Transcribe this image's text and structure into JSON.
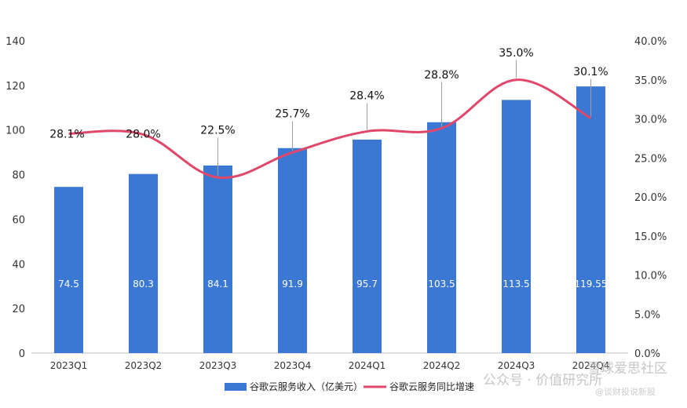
{
  "chart_data": {
    "type": "bar+line",
    "categories": [
      "2023Q1",
      "2023Q2",
      "2023Q3",
      "2023Q4",
      "2024Q1",
      "2024Q2",
      "2024Q3",
      "2024Q4"
    ],
    "bar_series": {
      "name": "谷歌云服务收入（亿美元）",
      "values": [
        74.5,
        80.3,
        84.1,
        91.9,
        95.7,
        103.5,
        113.5,
        119.55
      ],
      "labels": [
        "74.5",
        "80.3",
        "84.1",
        "91.9",
        "95.7",
        "103.5",
        "113.5",
        "119.55"
      ],
      "color": "#3a78d4"
    },
    "line_series": {
      "name": "谷歌云服务同比增速",
      "values": [
        28.1,
        28.0,
        22.5,
        25.7,
        28.4,
        28.8,
        35.0,
        30.1
      ],
      "labels": [
        "28.1%",
        "28.0%",
        "22.5%",
        "25.7%",
        "28.4%",
        "28.8%",
        "35.0%",
        "30.1%"
      ],
      "color": "#e0476a"
    },
    "y_left": {
      "min": 0,
      "max": 140,
      "ticks": [
        "0",
        "20",
        "40",
        "60",
        "80",
        "100",
        "120",
        "140"
      ]
    },
    "y_right": {
      "min": 0,
      "max": 40,
      "ticks": [
        "0.0%",
        "5.0%",
        "10.0%",
        "15.0%",
        "20.0%",
        "25.0%",
        "30.0%",
        "35.0%",
        "40.0%"
      ]
    },
    "legend_position": "bottom",
    "grid": false
  },
  "watermark": {
    "line1": "公众号 · 价值研究所",
    "line2": "@谈财投说新股",
    "line3": "雪球爱思社区"
  }
}
